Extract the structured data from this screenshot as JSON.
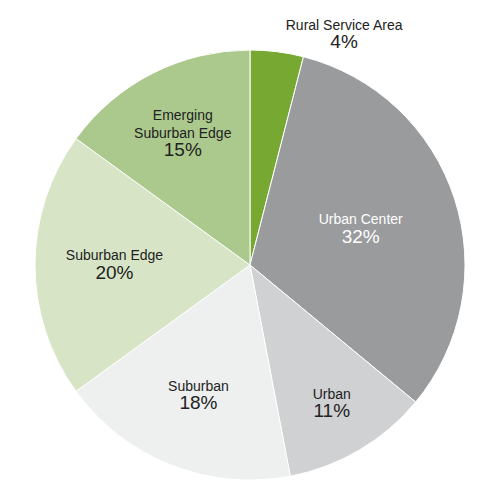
{
  "chart_data": {
    "type": "pie",
    "categories": [
      "Rural Service Area",
      "Urban Center",
      "Urban",
      "Suburban",
      "Suburban Edge",
      "Emerging Suburban Edge"
    ],
    "values": [
      4,
      32,
      11,
      18,
      20,
      15
    ],
    "value_labels": [
      "4%",
      "32%",
      "11%",
      "18%",
      "20%",
      "15%"
    ],
    "colors": [
      "#77a832",
      "#9a9b9d",
      "#d0d1d3",
      "#eeefef",
      "#d7e5c6",
      "#abc98c"
    ],
    "data_labels": true
  }
}
